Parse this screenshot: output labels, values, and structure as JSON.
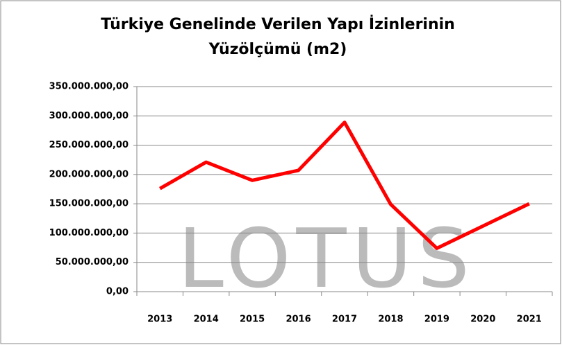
{
  "chart_data": {
    "type": "line",
    "title": "Türkiye Genelinde Verilen Yapı İzinlerinin Yüzölçümü (m2)",
    "watermark": "LOTUS",
    "categories": [
      "2013",
      "2014",
      "2015",
      "2016",
      "2017",
      "2018",
      "2019",
      "2020",
      "2021"
    ],
    "values": [
      176000000,
      221000000,
      190000000,
      207000000,
      289000000,
      149000000,
      74000000,
      112000000,
      150000000
    ],
    "color": "#ff0000",
    "ylim": [
      0,
      350000000
    ],
    "yticks": [
      {
        "value": 0,
        "label": "0,00"
      },
      {
        "value": 50000000,
        "label": "50.000.000,00"
      },
      {
        "value": 100000000,
        "label": "100.000.000,00"
      },
      {
        "value": 150000000,
        "label": "150.000.000,00"
      },
      {
        "value": 200000000,
        "label": "200.000.000,00"
      },
      {
        "value": 250000000,
        "label": "250.000.000,00"
      },
      {
        "value": 300000000,
        "label": "300.000.000,00"
      },
      {
        "value": 350000000,
        "label": "350.000.000,00"
      }
    ],
    "grid": true
  }
}
